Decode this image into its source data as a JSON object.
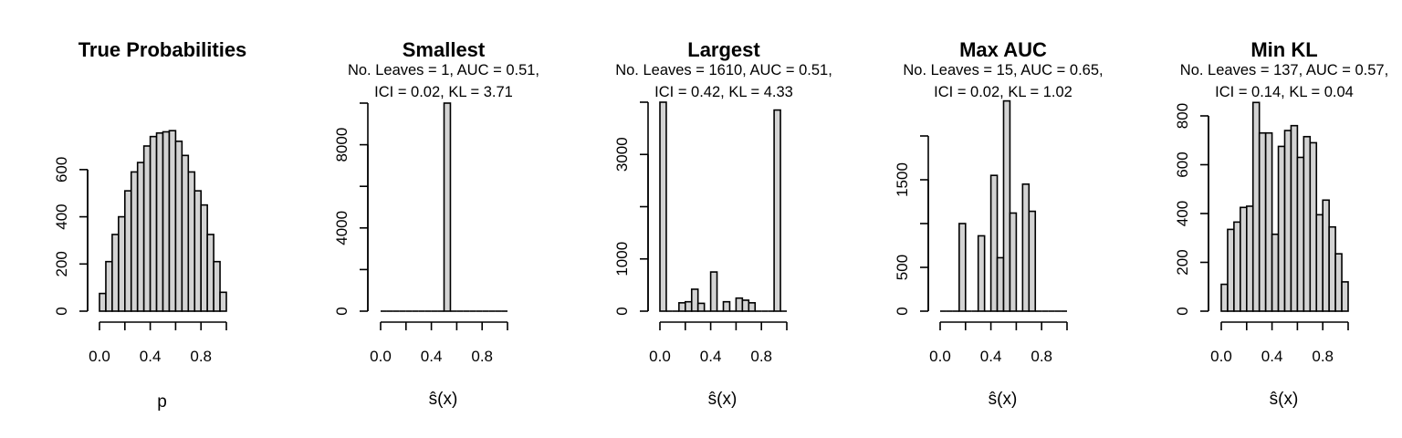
{
  "chart_data": [
    {
      "type": "bar",
      "title": "True Probabilities",
      "subtitle": [],
      "xlabel": "p",
      "ylabel": "",
      "xlim": [
        0,
        1
      ],
      "ylim": [
        0,
        700
      ],
      "bin_edges": [
        0.0,
        0.05,
        0.1,
        0.15,
        0.2,
        0.25,
        0.3,
        0.35,
        0.4,
        0.45,
        0.5,
        0.55,
        0.6,
        0.65,
        0.7,
        0.75,
        0.8,
        0.85,
        0.9,
        0.95,
        1.0
      ],
      "values": [
        75,
        210,
        325,
        400,
        510,
        590,
        630,
        700,
        740,
        755,
        760,
        765,
        720,
        660,
        590,
        510,
        450,
        325,
        210,
        80
      ],
      "x_ticks": [
        0.0,
        0.4,
        0.8
      ],
      "x_tick_labels": [
        "0.0",
        "0.4",
        "0.8"
      ],
      "y_ticks": [
        0,
        200,
        400,
        600
      ],
      "y_tick_labels": [
        "0",
        "200",
        "400",
        "600"
      ]
    },
    {
      "type": "bar",
      "title": "Smallest",
      "subtitle": [
        "No. Leaves = 1, AUC = 0.51,",
        "ICI = 0.02, KL = 3.71"
      ],
      "xlabel": "ŝ(x)",
      "ylabel": "",
      "xlim": [
        0,
        1
      ],
      "ylim": [
        0,
        10000
      ],
      "bin_edges": [
        0.0,
        0.05,
        0.1,
        0.15,
        0.2,
        0.25,
        0.3,
        0.35,
        0.4,
        0.45,
        0.5,
        0.55,
        0.6,
        0.65,
        0.7,
        0.75,
        0.8,
        0.85,
        0.9,
        0.95,
        1.0
      ],
      "values": [
        0,
        0,
        0,
        0,
        0,
        0,
        0,
        0,
        0,
        0,
        10000,
        0,
        0,
        0,
        0,
        0,
        0,
        0,
        0,
        0
      ],
      "x_ticks": [
        0.0,
        0.4,
        0.8
      ],
      "x_tick_labels": [
        "0.0",
        "0.4",
        "0.8"
      ],
      "y_ticks": [
        0,
        4000,
        8000
      ],
      "y_tick_labels": [
        "0",
        "4000",
        "8000"
      ]
    },
    {
      "type": "bar",
      "title": "Largest",
      "subtitle": [
        "No. Leaves = 1610, AUC = 0.51,",
        "ICI = 0.42, KL = 4.33"
      ],
      "xlabel": "ŝ(x)",
      "ylabel": "",
      "xlim": [
        0,
        1
      ],
      "ylim": [
        0,
        4000
      ],
      "bin_edges": [
        0.0,
        0.05,
        0.1,
        0.15,
        0.2,
        0.25,
        0.3,
        0.35,
        0.4,
        0.45,
        0.5,
        0.55,
        0.6,
        0.65,
        0.7,
        0.75,
        0.8,
        0.85,
        0.9,
        0.95,
        1.0
      ],
      "values": [
        4000,
        0,
        0,
        160,
        180,
        420,
        150,
        0,
        750,
        0,
        180,
        0,
        250,
        210,
        160,
        0,
        0,
        0,
        3850,
        0
      ],
      "x_ticks": [
        0.0,
        0.4,
        0.8
      ],
      "x_tick_labels": [
        "0.0",
        "0.4",
        "0.8"
      ],
      "y_ticks": [
        0,
        1000,
        3000
      ],
      "y_tick_labels": [
        "0",
        "1000",
        "3000"
      ]
    },
    {
      "type": "bar",
      "title": "Max AUC",
      "subtitle": [
        "No. Leaves = 15, AUC = 0.65,",
        "ICI = 0.02, KL = 1.02"
      ],
      "xlabel": "ŝ(x)",
      "ylabel": "",
      "xlim": [
        0,
        1
      ],
      "ylim": [
        0,
        2000
      ],
      "bin_edges": [
        0.0,
        0.05,
        0.1,
        0.15,
        0.2,
        0.25,
        0.3,
        0.35,
        0.4,
        0.45,
        0.5,
        0.55,
        0.6,
        0.65,
        0.7,
        0.75,
        0.8,
        0.85,
        0.9,
        0.95,
        1.0
      ],
      "values": [
        0,
        0,
        0,
        1000,
        0,
        0,
        860,
        0,
        1550,
        610,
        2400,
        1120,
        0,
        1450,
        1140,
        0,
        0,
        0,
        0,
        0
      ],
      "x_ticks": [
        0.0,
        0.4,
        0.8
      ],
      "x_tick_labels": [
        "0.0",
        "0.4",
        "0.8"
      ],
      "y_ticks": [
        0,
        500,
        1500
      ],
      "y_tick_labels": [
        "0",
        "500",
        "1500"
      ]
    },
    {
      "type": "bar",
      "title": "Min KL",
      "subtitle": [
        "No. Leaves = 137, AUC = 0.57,",
        "ICI = 0.14, KL = 0.04"
      ],
      "xlabel": "ŝ(x)",
      "ylabel": "",
      "xlim": [
        0,
        1
      ],
      "ylim": [
        0,
        800
      ],
      "bin_edges": [
        0.0,
        0.05,
        0.1,
        0.15,
        0.2,
        0.25,
        0.3,
        0.35,
        0.4,
        0.45,
        0.5,
        0.55,
        0.6,
        0.65,
        0.7,
        0.75,
        0.8,
        0.85,
        0.9,
        0.95,
        1.0
      ],
      "values": [
        110,
        335,
        365,
        425,
        430,
        855,
        730,
        730,
        315,
        675,
        740,
        760,
        630,
        715,
        690,
        395,
        455,
        345,
        235,
        120
      ],
      "x_ticks": [
        0.0,
        0.4,
        0.8
      ],
      "x_tick_labels": [
        "0.0",
        "0.4",
        "0.8"
      ],
      "y_ticks": [
        0,
        200,
        400,
        600,
        800
      ],
      "y_tick_labels": [
        "0",
        "200",
        "400",
        "600",
        "800"
      ]
    }
  ]
}
